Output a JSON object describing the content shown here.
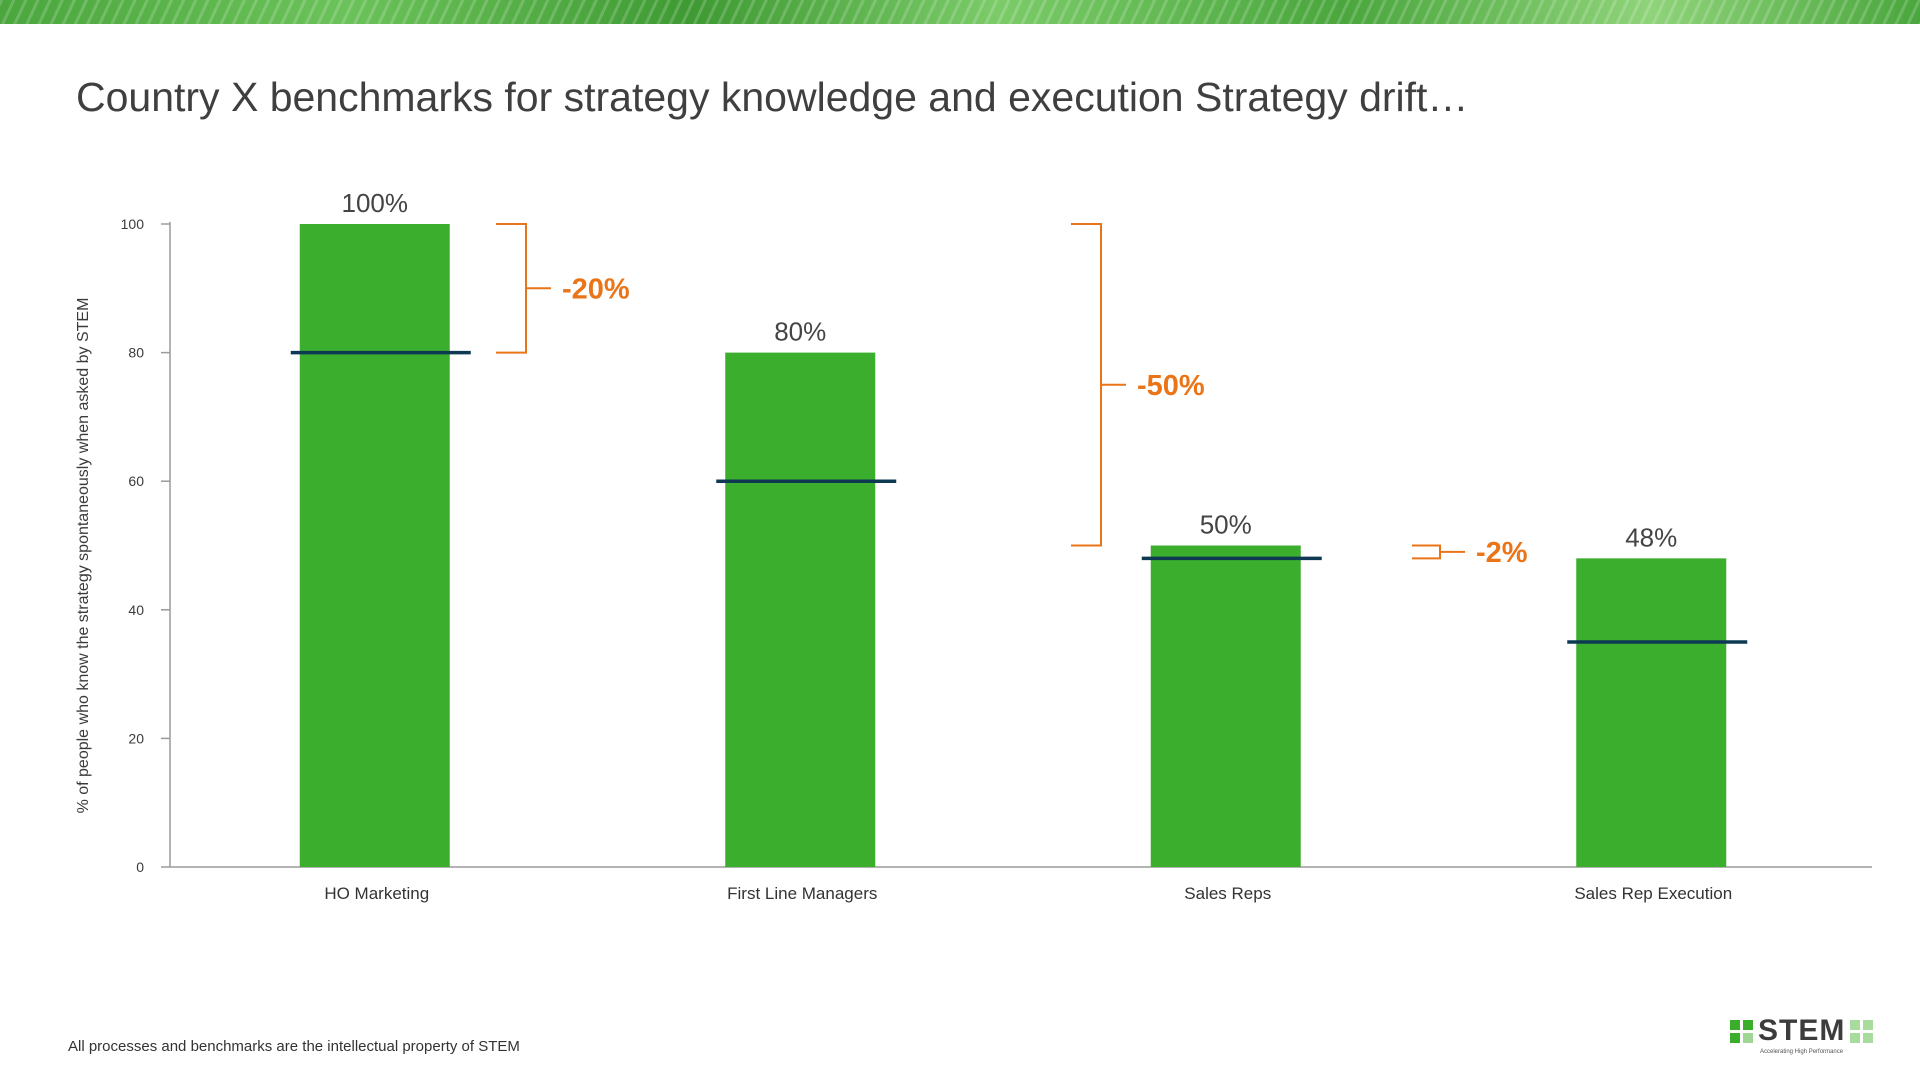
{
  "slide": {
    "title": "Country X benchmarks for strategy knowledge and execution Strategy drift…",
    "footer": "All processes and benchmarks are the intellectual property of STEM",
    "logo": {
      "name": "STEM",
      "tagline": "Accelerating High Performance"
    }
  },
  "colors": {
    "bar": "#3bae2e",
    "benchmark": "#0d3a52",
    "drift": "#ea7519",
    "axis": "#9a9a9a",
    "text": "#3b3b3b"
  },
  "chart_data": {
    "type": "bar",
    "title": "Country X benchmarks for strategy knowledge and execution Strategy drift…",
    "ylabel": "% of people who know the strategy spontaneously when asked by STEM",
    "xlabel": "",
    "ylim": [
      0,
      100
    ],
    "yticks": [
      "0",
      "20",
      "40",
      "60",
      "80",
      "100"
    ],
    "categories": [
      "HO Marketing",
      "First Line Managers",
      "Sales Reps",
      "Sales Rep Execution"
    ],
    "values": [
      100,
      80,
      50,
      48
    ],
    "value_labels": [
      "100%",
      "80%",
      "50%",
      "48%"
    ],
    "benchmarks": [
      80,
      60,
      48,
      35
    ],
    "grid": false,
    "drift_annotations": [
      {
        "label": "-20%",
        "from": 100,
        "to": 80
      },
      {
        "label": "-50%",
        "from": 100,
        "to": 50
      },
      {
        "label": "-2%",
        "from": 50,
        "to": 48
      }
    ]
  }
}
